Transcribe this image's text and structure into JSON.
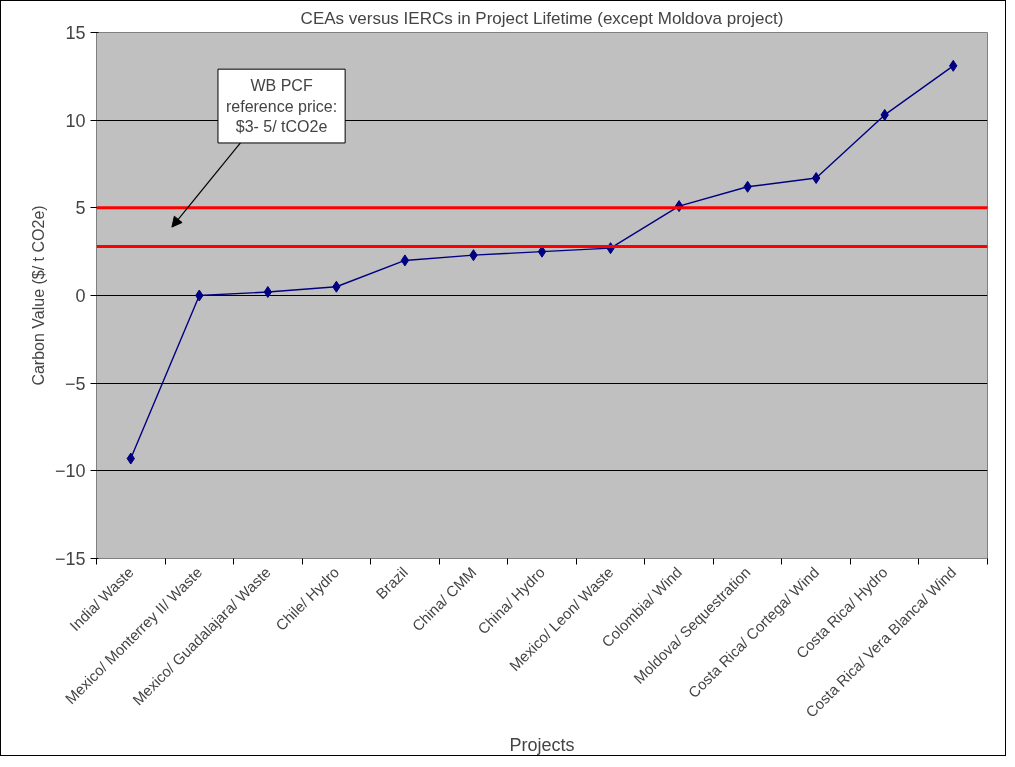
{
  "chart_data": {
    "type": "line",
    "title": "CEAs versus IERCs in Project Lifetime (except Moldova project)",
    "xlabel": "Projects",
    "ylabel": "Carbon Value ($/ t CO2e)",
    "categories": [
      "India/ Waste",
      "Mexico/ Monterrey II/ Waste",
      "Mexico/ Guadalajara/ Waste",
      "Chile/ Hydro",
      "Brazil",
      "China/ CMM",
      "China/ Hydro",
      "Mexico/ Leon/ Waste",
      "Colombia/ Wind",
      "Moldova/ Sequestration",
      "Costa Rica/ Cortega/ Wind",
      "Costa Rica/ Hydro",
      "Costa Rica/ Vera Blanca/ Wind"
    ],
    "series": [
      {
        "color": "#000080",
        "values": [
          -9.3,
          0.0,
          0.2,
          0.5,
          2.0,
          2.3,
          2.5,
          2.7,
          5.1,
          6.2,
          6.7,
          10.3,
          13.1
        ]
      }
    ],
    "ylim": [
      -15,
      15
    ],
    "yticks": [
      -15,
      -10,
      -5,
      0,
      5,
      10,
      15
    ],
    "grid": "y",
    "marker": "diamond",
    "line_style": "solid",
    "ref_lines": [
      {
        "axis": "y",
        "value": 5,
        "color": "#ff0000"
      },
      {
        "axis": "y",
        "value": 2.8,
        "color": "#ff0000"
      }
    ],
    "annotations": [
      "WB PCF\nreference price:\n$3- 5/ tCO2e"
    ]
  }
}
